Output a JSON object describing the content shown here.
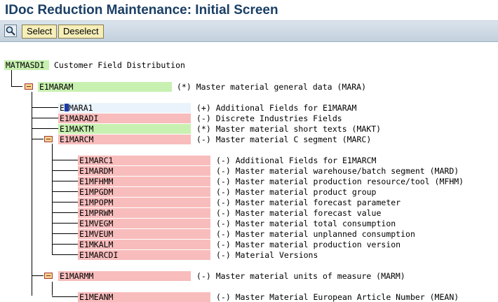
{
  "title": "IDoc Reduction Maintenance: Initial Screen",
  "toolbar": {
    "icon": "magnifier-icon",
    "select_label": "Select",
    "deselect_label": "Deselect"
  },
  "root": {
    "segment": "MATMASDI",
    "description": "Customer Field Distribution"
  },
  "e1maram": {
    "segment": "E1MARAM",
    "description": "(*) Master material general data (MARA)"
  },
  "level2": [
    {
      "pre": "E",
      "post": "MARA1",
      "description": "(+) Additional Fields for E1MARAM"
    },
    {
      "segment": "E1MARADI",
      "description": "(-) Discrete Industries Fields"
    },
    {
      "segment": "E1MAKTM",
      "description": "(*) Master material short texts (MAKT)"
    },
    {
      "segment": "E1MARCM",
      "description": "(-) Master material C segment (MARC)"
    }
  ],
  "marc_children": [
    {
      "segment": "E1MARC1",
      "description": "(-) Additional Fields for E1MARCM"
    },
    {
      "segment": "E1MARDM",
      "description": "(-) Master material warehouse/batch segment (MARD)"
    },
    {
      "segment": "E1MFHMM",
      "description": "(-) Master material production resource/tool (MFHM)"
    },
    {
      "segment": "E1MPGDM",
      "description": "(-) Master material product group"
    },
    {
      "segment": "E1MPOPM",
      "description": "(-) Master material forecast parameter"
    },
    {
      "segment": "E1MPRWM",
      "description": "(-) Master material forecast value"
    },
    {
      "segment": "E1MVEGM",
      "description": "(-) Master material total consumption"
    },
    {
      "segment": "E1MVEUM",
      "description": "(-) Master material unplanned consumption"
    },
    {
      "segment": "E1MKALM",
      "description": "(-) Master material production version"
    },
    {
      "segment": "E1MARCDI",
      "description": "(-) Material Versions"
    }
  ],
  "marm": {
    "segment": "E1MARMM",
    "description": "(-) Master material units of measure (MARM)"
  },
  "mean_partial": {
    "segment": "E1MEANM",
    "description": "(-) Master Material European Article Number (MEAN)"
  },
  "colors": {
    "included": "#c8f0b0",
    "excluded": "#f8bcbc",
    "selected": "#eaf3fb",
    "title": "#1a3f66"
  }
}
